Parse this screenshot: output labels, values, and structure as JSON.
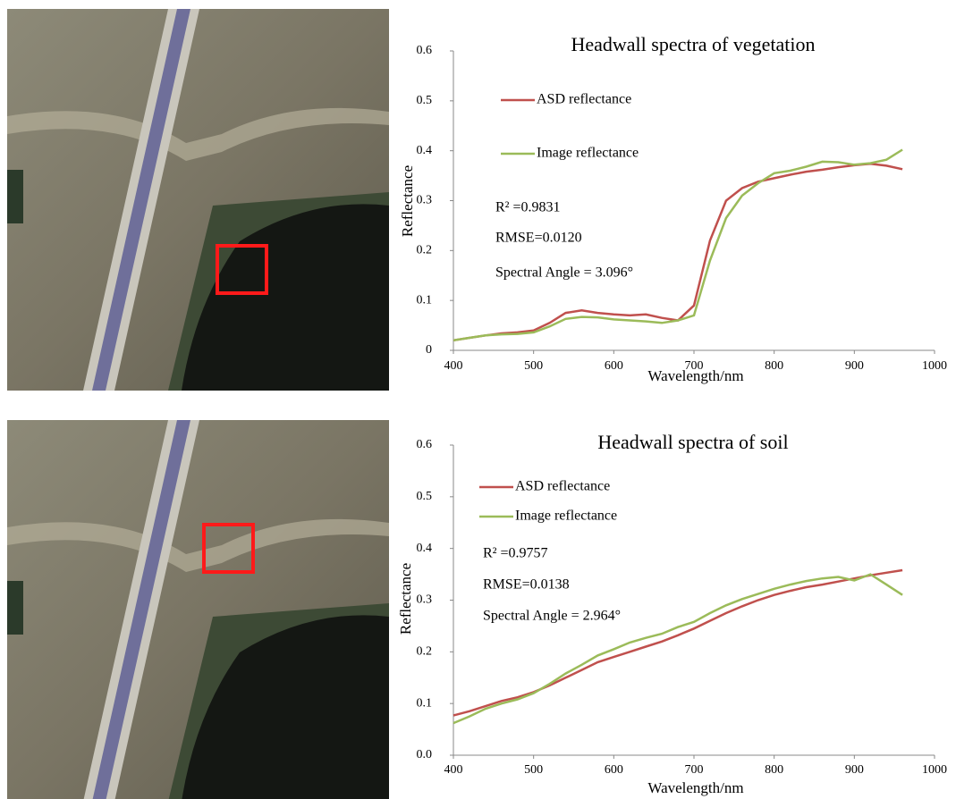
{
  "chart_data": [
    {
      "type": "line",
      "title": "Headwall spectra of vegetation",
      "xlabel": "Wavelength/nm",
      "ylabel": "Reflectance",
      "x": [
        400,
        420,
        440,
        460,
        480,
        500,
        520,
        540,
        560,
        580,
        600,
        620,
        640,
        660,
        680,
        700,
        720,
        740,
        760,
        780,
        800,
        820,
        840,
        860,
        880,
        900,
        920,
        940,
        960
      ],
      "series": [
        {
          "name": "ASD reflectance",
          "color": "#c0504d",
          "values": [
            0.02,
            0.025,
            0.03,
            0.034,
            0.036,
            0.04,
            0.055,
            0.075,
            0.08,
            0.075,
            0.072,
            0.07,
            0.072,
            0.065,
            0.06,
            0.09,
            0.22,
            0.3,
            0.325,
            0.338,
            0.345,
            0.352,
            0.358,
            0.362,
            0.367,
            0.371,
            0.374,
            0.37,
            0.363
          ]
        },
        {
          "name": "Image reflectance",
          "color": "#9bbb59",
          "values": [
            0.02,
            0.025,
            0.03,
            0.032,
            0.033,
            0.036,
            0.048,
            0.063,
            0.067,
            0.066,
            0.062,
            0.06,
            0.058,
            0.055,
            0.06,
            0.07,
            0.18,
            0.265,
            0.31,
            0.335,
            0.355,
            0.36,
            0.368,
            0.378,
            0.377,
            0.372,
            0.375,
            0.382,
            0.402
          ]
        }
      ],
      "annotations": [
        "R² =0.9831",
        "RMSE=0.0120",
        "Spectral Angle = 3.096°"
      ],
      "xlim": [
        400,
        1000
      ],
      "xticks": [
        400,
        500,
        600,
        700,
        800,
        900,
        1000
      ],
      "ylim": [
        0,
        0.6
      ],
      "yticks": [
        0,
        0.1,
        0.2,
        0.3,
        0.4,
        0.5,
        0.6
      ],
      "grid": false
    },
    {
      "type": "line",
      "title": "Headwall spectra of soil",
      "xlabel": "Wavelength/nm",
      "ylabel": "Reflectance",
      "x": [
        400,
        420,
        440,
        460,
        480,
        500,
        520,
        540,
        560,
        580,
        600,
        620,
        640,
        660,
        680,
        700,
        720,
        740,
        760,
        780,
        800,
        820,
        840,
        860,
        880,
        900,
        920,
        940,
        960
      ],
      "series": [
        {
          "name": "ASD reflectance",
          "color": "#c0504d",
          "values": [
            0.077,
            0.085,
            0.095,
            0.105,
            0.112,
            0.122,
            0.135,
            0.15,
            0.165,
            0.18,
            0.19,
            0.2,
            0.21,
            0.22,
            0.232,
            0.245,
            0.26,
            0.275,
            0.288,
            0.3,
            0.31,
            0.318,
            0.325,
            0.33,
            0.336,
            0.342,
            0.348,
            0.353,
            0.358
          ]
        },
        {
          "name": "Image reflectance",
          "color": "#9bbb59",
          "values": [
            0.062,
            0.075,
            0.09,
            0.1,
            0.108,
            0.12,
            0.138,
            0.158,
            0.175,
            0.193,
            0.205,
            0.218,
            0.227,
            0.235,
            0.248,
            0.258,
            0.275,
            0.29,
            0.302,
            0.312,
            0.322,
            0.33,
            0.337,
            0.342,
            0.345,
            0.338,
            0.35,
            0.33,
            0.31
          ]
        }
      ],
      "annotations": [
        "R² =0.9757",
        "RMSE=0.0138",
        "Spectral Angle = 2.964°"
      ],
      "xlim": [
        400,
        1000
      ],
      "xticks": [
        400,
        500,
        600,
        700,
        800,
        900,
        1000
      ],
      "ylim": [
        0,
        0.6
      ],
      "yticks": [
        {
          "value": 0,
          "label": "0.0"
        },
        0.1,
        0.2,
        0.3,
        0.4,
        0.5,
        0.6
      ],
      "grid": false
    }
  ]
}
